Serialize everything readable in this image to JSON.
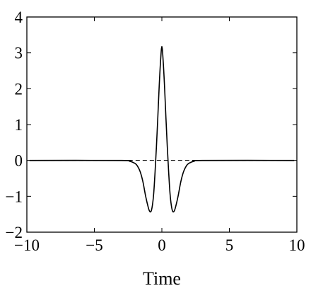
{
  "chart_data": {
    "type": "line",
    "title": "",
    "xlabel": "Time",
    "ylabel": "",
    "xlim": [
      -10,
      10
    ],
    "ylim": [
      -2,
      4
    ],
    "xticks": [
      -10,
      -5,
      0,
      5,
      10
    ],
    "xtick_labels": [
      "−10",
      "−5",
      "0",
      "5",
      "10"
    ],
    "yticks": [
      -2,
      -1,
      0,
      1,
      2,
      3,
      4
    ],
    "ytick_labels": [
      "−2",
      "−1",
      "0",
      "1",
      "2",
      "3",
      "4"
    ],
    "grid": false,
    "legend": "none",
    "series": [
      {
        "style": "solid",
        "color": "#000000",
        "x": [
          -9.8,
          -3,
          -2.4,
          -2.0,
          -1.8,
          -1.6,
          -1.4,
          -1.2,
          -1.0,
          -0.9,
          -0.8,
          -0.7,
          -0.6,
          -0.5,
          -0.4,
          -0.3,
          -0.2,
          -0.1,
          0,
          0.1,
          0.2,
          0.3,
          0.4,
          0.5,
          0.6,
          0.7,
          0.8,
          0.9,
          1.0,
          1.2,
          1.4,
          1.6,
          1.8,
          2.0,
          2.4,
          3,
          9.8
        ],
        "y": [
          0,
          0,
          -0.02,
          -0.08,
          -0.16,
          -0.32,
          -0.6,
          -1.0,
          -1.32,
          -1.42,
          -1.42,
          -1.25,
          -0.9,
          -0.3,
          0.4,
          1.2,
          2.05,
          2.75,
          3.18,
          2.75,
          2.05,
          1.2,
          0.4,
          -0.3,
          -0.9,
          -1.25,
          -1.42,
          -1.42,
          -1.32,
          -1.0,
          -0.6,
          -0.32,
          -0.16,
          -0.08,
          -0.02,
          0,
          0
        ]
      },
      {
        "style": "dashed",
        "color": "#000000",
        "x": [
          -9.8,
          9.8
        ],
        "y": [
          0,
          0
        ]
      }
    ]
  }
}
